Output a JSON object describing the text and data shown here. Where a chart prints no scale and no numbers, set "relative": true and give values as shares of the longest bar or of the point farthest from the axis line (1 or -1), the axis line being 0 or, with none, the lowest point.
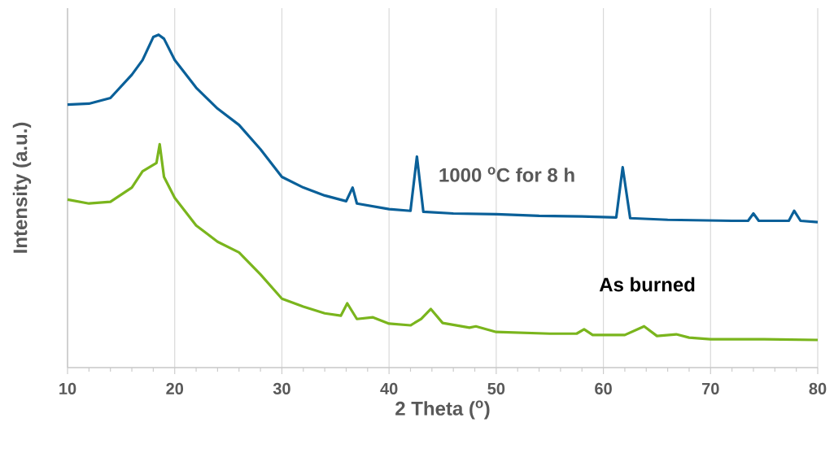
{
  "chart_data": {
    "type": "line",
    "relative": true,
    "xlabel": "2 Theta ($^{o}$)",
    "ylabel": "Intensity (a.u.)",
    "xlim": [
      10,
      80
    ],
    "xticks": [
      10,
      20,
      30,
      40,
      50,
      60,
      70,
      80
    ],
    "grid": "x",
    "series": [
      {
        "name": "1000 $^{o}$C for 8 h",
        "color": "#0a6099",
        "x": [
          10,
          12,
          14,
          16,
          17,
          18,
          18.5,
          19,
          20,
          22,
          24,
          26,
          28,
          30,
          32,
          34,
          36,
          36.6,
          37,
          40,
          42,
          42.6,
          43.2,
          46,
          50,
          54,
          58,
          61.2,
          61.8,
          62.5,
          66,
          72,
          73.5,
          74,
          74.5,
          76,
          77.3,
          77.8,
          78.4,
          80
        ],
        "values": [
          0.79,
          0.793,
          0.81,
          0.88,
          0.924,
          0.993,
          1.0,
          0.988,
          0.924,
          0.841,
          0.778,
          0.729,
          0.656,
          0.573,
          0.541,
          0.517,
          0.5,
          0.541,
          0.493,
          0.476,
          0.471,
          0.634,
          0.468,
          0.463,
          0.461,
          0.456,
          0.454,
          0.451,
          0.602,
          0.449,
          0.444,
          0.441,
          0.441,
          0.463,
          0.441,
          0.441,
          0.441,
          0.471,
          0.441,
          0.437
        ]
      },
      {
        "name": "As burned",
        "color": "#7ab51d",
        "x": [
          10,
          12,
          14,
          16,
          17,
          18.3,
          18.6,
          19,
          20,
          22,
          24,
          26,
          28,
          30,
          32,
          34,
          35.5,
          36.1,
          37,
          38.5,
          40,
          42,
          43,
          43.9,
          45,
          47.5,
          48.1,
          50,
          55,
          57.5,
          58.2,
          59,
          62,
          63.8,
          65,
          66.8,
          68,
          70,
          75,
          80
        ],
        "values": [
          0.505,
          0.493,
          0.498,
          0.541,
          0.59,
          0.615,
          0.671,
          0.573,
          0.51,
          0.427,
          0.378,
          0.346,
          0.28,
          0.207,
          0.183,
          0.163,
          0.156,
          0.193,
          0.146,
          0.151,
          0.132,
          0.127,
          0.146,
          0.176,
          0.134,
          0.12,
          0.124,
          0.107,
          0.102,
          0.102,
          0.115,
          0.098,
          0.098,
          0.124,
          0.095,
          0.1,
          0.09,
          0.085,
          0.085,
          0.083
        ]
      }
    ]
  }
}
